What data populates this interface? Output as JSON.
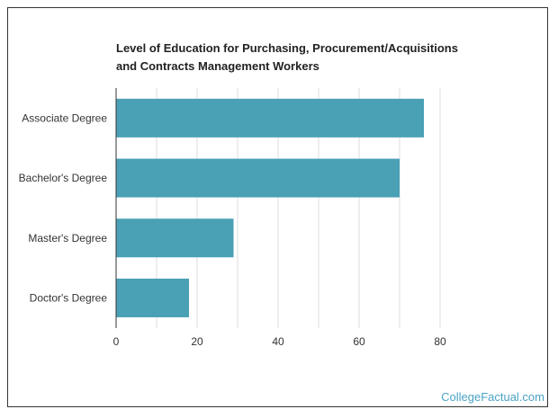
{
  "chart_data": {
    "type": "bar",
    "orientation": "horizontal",
    "title_lines": [
      "Level of Education for Purchasing, Procurement/Acquisitions",
      "and Contracts Management Workers"
    ],
    "categories": [
      "Associate Degree",
      "Bachelor's Degree",
      "Master's Degree",
      "Doctor's Degree"
    ],
    "values": [
      76,
      70,
      29,
      18
    ],
    "xlim": [
      0,
      80
    ],
    "x_ticks": [
      0,
      20,
      40,
      60,
      80
    ],
    "grid": true,
    "bar_color": "#4aa0b5",
    "grid_color": "#dddddd"
  },
  "footer": {
    "brand": "CollegeFactual.com",
    "brand_color": "#4aa3c4"
  }
}
